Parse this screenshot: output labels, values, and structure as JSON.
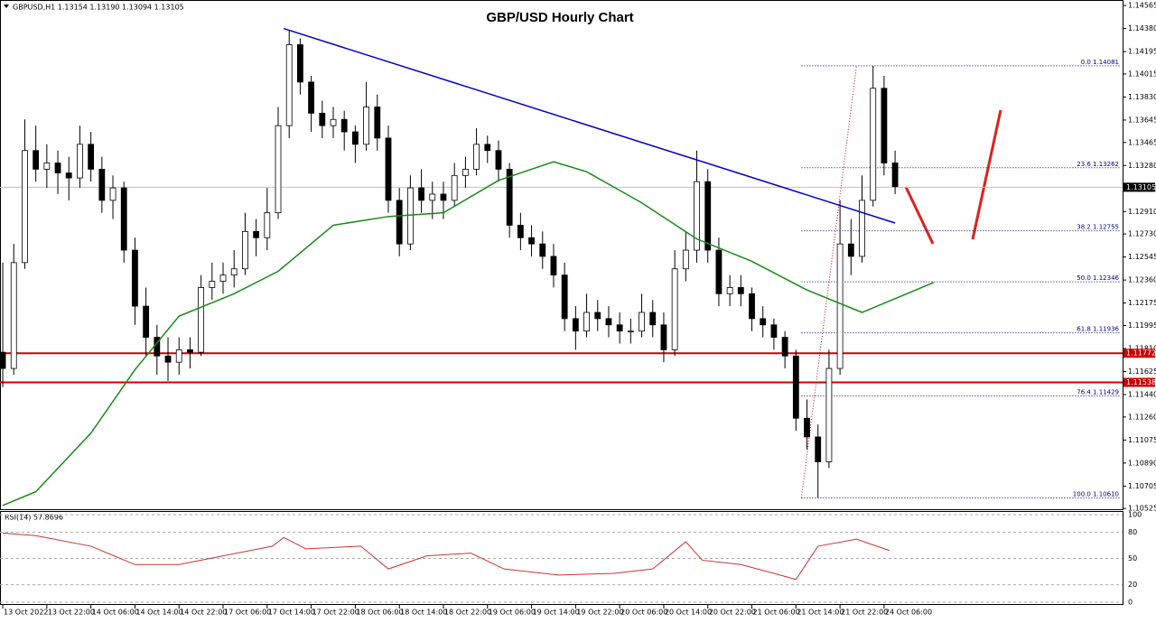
{
  "chart_data": [
    {
      "type": "candlestick",
      "title": "GBP/USD Hourly Chart",
      "header": "GBPUSD,H1 1.13154 1.13190 1.13094 1.13105",
      "x": [
        0,
        2,
        4,
        6,
        8,
        10,
        12,
        14,
        16,
        18,
        20,
        22,
        24,
        26,
        28,
        30,
        32,
        34,
        36,
        38,
        40,
        42,
        44,
        46,
        48,
        50,
        52,
        54,
        56,
        58,
        60,
        62,
        64,
        66,
        68,
        70,
        72,
        74,
        76,
        78,
        80,
        82,
        84,
        86,
        88,
        90,
        92,
        94,
        96,
        98,
        100,
        102,
        104,
        106,
        108,
        110,
        112,
        114,
        116,
        118,
        120,
        122,
        124,
        126,
        128,
        130,
        132,
        134,
        136,
        138,
        140,
        142,
        144,
        146,
        148,
        150,
        152,
        154,
        156,
        158,
        160,
        162
      ],
      "open": [
        1.1178,
        1.1165,
        1.125,
        1.134,
        1.1325,
        1.133,
        1.1322,
        1.1318,
        1.1345,
        1.1325,
        1.13,
        1.131,
        1.126,
        1.1215,
        1.119,
        1.1175,
        1.117,
        1.118,
        1.1178,
        1.123,
        1.1235,
        1.124,
        1.1245,
        1.1275,
        1.127,
        1.129,
        1.136,
        1.1425,
        1.1395,
        1.137,
        1.136,
        1.1365,
        1.1355,
        1.1345,
        1.1375,
        1.135,
        1.13,
        1.1265,
        1.131,
        1.13,
        1.1305,
        1.13,
        1.132,
        1.1325,
        1.1345,
        1.134,
        1.1325,
        1.128,
        1.127,
        1.1265,
        1.1255,
        1.124,
        1.1205,
        1.1195,
        1.121,
        1.1205,
        1.12,
        1.1195,
        1.1195,
        1.121,
        1.12,
        1.118,
        1.1245,
        1.126,
        1.1315,
        1.126,
        1.1225,
        1.123,
        1.1225,
        1.1205,
        1.12,
        1.119,
        1.1175,
        1.1125,
        1.111,
        1.109,
        1.1165,
        1.1265,
        1.1255,
        1.13,
        1.139,
        1.133
      ],
      "high": [
        1.125,
        1.1265,
        1.1365,
        1.136,
        1.1345,
        1.134,
        1.1335,
        1.136,
        1.1355,
        1.1335,
        1.132,
        1.1315,
        1.127,
        1.123,
        1.12,
        1.119,
        1.119,
        1.119,
        1.124,
        1.125,
        1.125,
        1.126,
        1.129,
        1.1285,
        1.131,
        1.1375,
        1.1437,
        1.143,
        1.14,
        1.138,
        1.1375,
        1.1372,
        1.136,
        1.1395,
        1.1385,
        1.136,
        1.131,
        1.132,
        1.1325,
        1.1315,
        1.1315,
        1.133,
        1.1335,
        1.1358,
        1.1352,
        1.1348,
        1.133,
        1.129,
        1.128,
        1.1275,
        1.1265,
        1.125,
        1.1215,
        1.1225,
        1.122,
        1.1215,
        1.121,
        1.1205,
        1.1225,
        1.122,
        1.121,
        1.126,
        1.1275,
        1.134,
        1.1325,
        1.127,
        1.124,
        1.124,
        1.123,
        1.1215,
        1.1205,
        1.1195,
        1.118,
        1.114,
        1.112,
        1.118,
        1.13,
        1.1285,
        1.132,
        1.1408,
        1.14,
        1.134
      ],
      "low": [
        1.115,
        1.116,
        1.1245,
        1.1315,
        1.131,
        1.1305,
        1.13,
        1.131,
        1.1315,
        1.129,
        1.1285,
        1.125,
        1.12,
        1.1175,
        1.116,
        1.1155,
        1.116,
        1.1165,
        1.1175,
        1.122,
        1.1225,
        1.123,
        1.124,
        1.1255,
        1.126,
        1.1285,
        1.135,
        1.1385,
        1.1355,
        1.135,
        1.135,
        1.134,
        1.133,
        1.134,
        1.134,
        1.129,
        1.1255,
        1.126,
        1.129,
        1.1285,
        1.1285,
        1.1295,
        1.131,
        1.132,
        1.133,
        1.1315,
        1.127,
        1.126,
        1.1255,
        1.1245,
        1.123,
        1.1195,
        1.118,
        1.119,
        1.1195,
        1.119,
        1.1185,
        1.1185,
        1.119,
        1.119,
        1.117,
        1.1175,
        1.1235,
        1.125,
        1.125,
        1.1215,
        1.1215,
        1.1215,
        1.1195,
        1.119,
        1.118,
        1.1165,
        1.1115,
        1.11,
        1.1061,
        1.1085,
        1.116,
        1.124,
        1.125,
        1.1295,
        1.132,
        1.1305
      ],
      "close": [
        1.1165,
        1.125,
        1.134,
        1.1325,
        1.133,
        1.1322,
        1.1318,
        1.1345,
        1.1325,
        1.13,
        1.131,
        1.126,
        1.1215,
        1.119,
        1.1175,
        1.117,
        1.118,
        1.1178,
        1.123,
        1.1235,
        1.124,
        1.1245,
        1.1275,
        1.127,
        1.129,
        1.136,
        1.1425,
        1.1395,
        1.137,
        1.136,
        1.1365,
        1.1355,
        1.1345,
        1.1375,
        1.135,
        1.13,
        1.1265,
        1.131,
        1.13,
        1.1305,
        1.13,
        1.132,
        1.1325,
        1.1345,
        1.134,
        1.1325,
        1.128,
        1.127,
        1.1265,
        1.1255,
        1.124,
        1.1205,
        1.1195,
        1.121,
        1.1205,
        1.12,
        1.1195,
        1.1195,
        1.121,
        1.12,
        1.118,
        1.1245,
        1.126,
        1.1315,
        1.126,
        1.1225,
        1.123,
        1.1225,
        1.1205,
        1.12,
        1.119,
        1.1175,
        1.1125,
        1.111,
        1.109,
        1.1165,
        1.1265,
        1.1255,
        1.13,
        1.139,
        1.133,
        1.1311
      ],
      "up_color": "#ffffff",
      "down_color": "#000000",
      "xlim": [
        -0.5,
        203.3
      ],
      "ylim": [
        1.10512,
        1.14609
      ],
      "yticks": [
        1.14565,
        {
          "value": 1.1438,
          "label": "1.14380"
        },
        1.14195,
        1.14015,
        {
          "value": 1.1383,
          "label": "1.13830"
        },
        1.13645,
        1.13465,
        {
          "value": 1.1328,
          "label": "1.13280"
        },
        1.13095,
        {
          "value": 1.1291,
          "label": "1.12910"
        },
        {
          "value": 1.1273,
          "label": "1.12730"
        },
        1.12545,
        {
          "value": 1.1236,
          "label": "1.12360"
        },
        1.12175,
        1.11995,
        {
          "value": 1.1181,
          "label": "1.11810"
        },
        1.11625,
        {
          "value": 1.1144,
          "label": "1.11440"
        },
        {
          "value": 1.1126,
          "label": "1.11260"
        },
        1.11075,
        {
          "value": 1.1089,
          "label": "1.10890"
        },
        1.10705,
        1.10525
      ],
      "xticks": [
        {
          "value": 0,
          "label": "13 Oct 2022"
        },
        {
          "value": 8,
          "label": "13 Oct 22:00"
        },
        {
          "value": 16,
          "label": "14 Oct 06:00"
        },
        {
          "value": 24,
          "label": "14 Oct 14:00"
        },
        {
          "value": 32,
          "label": "14 Oct 22:00"
        },
        {
          "value": 40,
          "label": "17 Oct 06:00"
        },
        {
          "value": 48,
          "label": "17 Oct 14:00"
        },
        {
          "value": 56,
          "label": "17 Oct 22:00"
        },
        {
          "value": 64,
          "label": "18 Oct 06:00"
        },
        {
          "value": 72,
          "label": "18 Oct 14:00"
        },
        {
          "value": 80,
          "label": "18 Oct 22:00"
        },
        {
          "value": 88,
          "label": "19 Oct 06:00"
        },
        {
          "value": 96,
          "label": "19 Oct 14:00"
        },
        {
          "value": 104,
          "label": "19 Oct 22:00"
        },
        {
          "value": 112,
          "label": "20 Oct 06:00"
        },
        {
          "value": 120,
          "label": "20 Oct 14:00"
        },
        {
          "value": 128,
          "label": "20 Oct 22:00"
        },
        {
          "value": 136,
          "label": "21 Oct 06:00"
        },
        {
          "value": 144,
          "label": "21 Oct 14:00"
        },
        {
          "value": 152,
          "label": "21 Oct 22:00"
        },
        {
          "value": 160,
          "label": "24 Oct 06:00"
        }
      ],
      "moving_average": {
        "color": "#1a8a1a",
        "x": [
          0,
          6,
          16,
          24,
          32,
          42,
          50,
          60,
          70,
          80,
          90,
          100,
          106,
          116,
          126,
          136,
          146,
          156,
          169
        ],
        "values": [
          1.1055,
          1.1066,
          1.1113,
          1.1164,
          1.1207,
          1.1225,
          1.1243,
          1.128,
          1.1287,
          1.129,
          1.1316,
          1.1331,
          1.1323,
          1.1298,
          1.1269,
          1.1251,
          1.1228,
          1.121,
          1.1234
        ]
      },
      "trendline": {
        "color": "#0000cc",
        "x": [
          51,
          162
        ],
        "values": [
          1.1438,
          1.12818
        ]
      },
      "levels": [
        {
          "value": 1.11772,
          "color": "#cc0000"
        },
        {
          "value": 1.11538,
          "color": "#cc0000"
        }
      ],
      "current_price": 1.13105,
      "fibonacci": [
        {
          "value": 1.14081,
          "label": "0.0 1.14081"
        },
        {
          "value": 1.13262,
          "label": "23.6 1.13262"
        },
        {
          "value": 1.12755,
          "label": "38.2 1.12755"
        },
        {
          "value": 1.12346,
          "label": "50.0 1.12346"
        },
        {
          "value": 1.11936,
          "label": "61.8 1.11936"
        },
        {
          "value": 1.11429,
          "label": "76.4 1.11429"
        },
        {
          "value": 1.1061,
          "label": "100.0 1.10610"
        }
      ],
      "fib_color": "#000080"
    },
    {
      "type": "line",
      "title": "RSI(14) 57.8696",
      "color": "#cc3333",
      "x": [
        0,
        6,
        16,
        24,
        29,
        32,
        40,
        49,
        51,
        55,
        65,
        70,
        77,
        85,
        91,
        101,
        111,
        118,
        124,
        127,
        134,
        140,
        144,
        148,
        155,
        161
      ],
      "values": [
        79,
        76,
        64,
        43,
        43,
        43,
        53,
        64,
        74,
        61,
        64,
        38,
        53,
        56,
        38,
        31,
        33,
        38,
        69,
        48,
        43,
        33,
        26,
        64,
        72,
        59
      ],
      "xlim": [
        -0.5,
        203.3
      ],
      "ylim": [
        0,
        100
      ],
      "yticks": [
        100,
        80,
        50,
        20,
        0
      ]
    }
  ]
}
